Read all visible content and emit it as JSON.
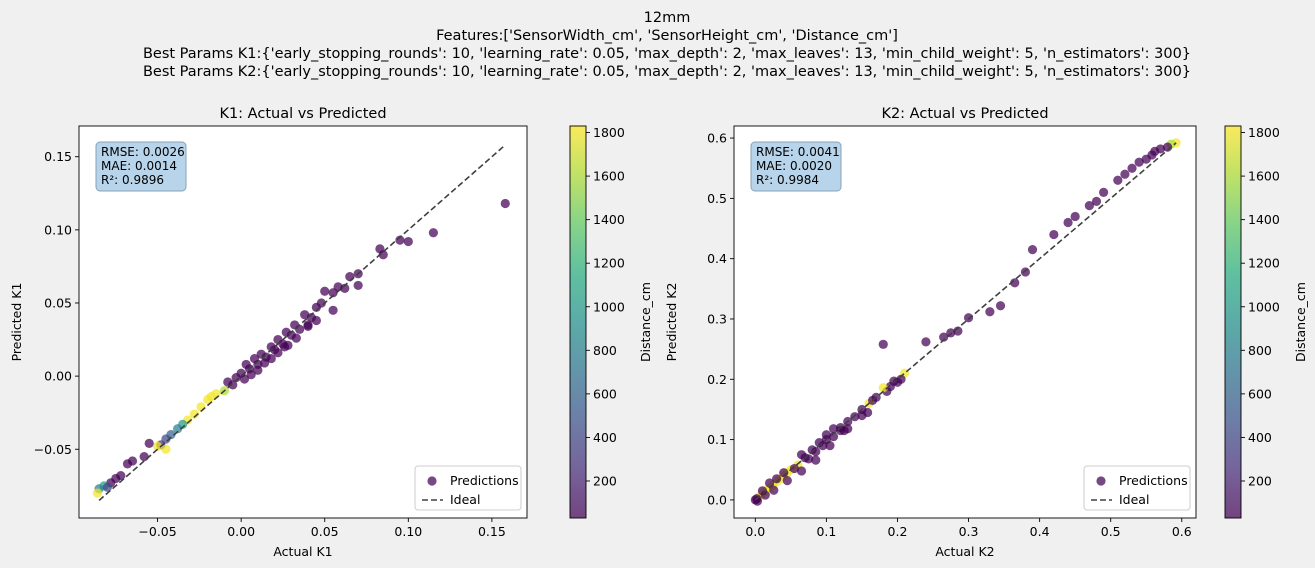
{
  "figure": {
    "title_lines": [
      "12mm",
      "Features:['SensorWidth_cm', 'SensorHeight_cm', 'Distance_cm']",
      "Best Params K1:{'early_stopping_rounds': 10, 'learning_rate': 0.05, 'max_depth': 2, 'max_leaves': 13, 'min_child_weight': 5, 'n_estimators': 300}",
      "Best Params K2:{'early_stopping_rounds': 10, 'learning_rate': 0.05, 'max_depth': 2, 'max_leaves': 13, 'min_child_weight': 5, 'n_estimators': 300}"
    ],
    "background": "#f0f0f0"
  },
  "chart_data": [
    {
      "type": "scatter",
      "title": "K1: Actual vs Predicted",
      "xlabel": "Actual K1",
      "ylabel": "Predicted K1",
      "xlim": [
        -0.097,
        0.171
      ],
      "ylim": [
        -0.097,
        0.171
      ],
      "xticks": [
        -0.05,
        0.0,
        0.05,
        0.1,
        0.15
      ],
      "xtick_labels": [
        "−0.05",
        "0.00",
        "0.05",
        "0.10",
        "0.15"
      ],
      "yticks": [
        -0.05,
        0.0,
        0.05,
        0.1,
        0.15
      ],
      "ytick_labels": [
        "−0.05",
        "0.00",
        "0.05",
        "0.10",
        "0.15"
      ],
      "metrics": [
        "RMSE: 0.0026",
        "MAE: 0.0014",
        "R²: 0.9896"
      ],
      "ideal_line": [
        [
          -0.085,
          -0.085
        ],
        [
          0.158,
          0.158
        ]
      ],
      "series": [
        {
          "name": "Predictions",
          "color_by": "Distance_cm",
          "points": [
            [
              0.158,
              0.118,
              30
            ],
            [
              0.115,
              0.098,
              30
            ],
            [
              0.1,
              0.092,
              30
            ],
            [
              0.095,
              0.093,
              30
            ],
            [
              0.085,
              0.083,
              30
            ],
            [
              0.083,
              0.087,
              30
            ],
            [
              0.07,
              0.07,
              30
            ],
            [
              0.065,
              0.068,
              30
            ],
            [
              0.07,
              0.062,
              30
            ],
            [
              0.058,
              0.061,
              30
            ],
            [
              0.062,
              0.06,
              30
            ],
            [
              0.055,
              0.057,
              30
            ],
            [
              0.05,
              0.058,
              30
            ],
            [
              0.048,
              0.05,
              30
            ],
            [
              0.055,
              0.045,
              30
            ],
            [
              0.045,
              0.047,
              30
            ],
            [
              0.042,
              0.04,
              30
            ],
            [
              0.038,
              0.042,
              30
            ],
            [
              0.04,
              0.035,
              30
            ],
            [
              0.035,
              0.032,
              30
            ],
            [
              0.032,
              0.035,
              30
            ],
            [
              0.03,
              0.028,
              30
            ],
            [
              0.027,
              0.03,
              30
            ],
            [
              0.025,
              0.022,
              30
            ],
            [
              0.022,
              0.025,
              30
            ],
            [
              0.02,
              0.018,
              30
            ],
            [
              0.018,
              0.02,
              30
            ],
            [
              0.015,
              0.013,
              30
            ],
            [
              0.012,
              0.015,
              30
            ],
            [
              0.01,
              0.008,
              30
            ],
            [
              0.008,
              0.012,
              30
            ],
            [
              0.005,
              0.005,
              30
            ],
            [
              0.003,
              0.008,
              30
            ],
            [
              0.0,
              0.002,
              30
            ],
            [
              0.002,
              -0.002,
              30
            ],
            [
              -0.003,
              -0.001,
              30
            ],
            [
              -0.005,
              -0.006,
              30
            ],
            [
              -0.008,
              -0.004,
              30
            ],
            [
              0.018,
              0.012,
              30
            ],
            [
              0.026,
              0.02,
              30
            ],
            [
              0.033,
              0.026,
              30
            ],
            [
              0.04,
              0.034,
              30
            ],
            [
              0.045,
              0.038,
              30
            ],
            [
              0.028,
              0.021,
              30
            ],
            [
              0.014,
              0.009,
              30
            ],
            [
              0.006,
              0.001,
              30
            ],
            [
              0.01,
              0.004,
              30
            ],
            [
              0.022,
              0.016,
              30
            ],
            [
              -0.015,
              -0.012,
              1800
            ],
            [
              -0.02,
              -0.016,
              1800
            ],
            [
              -0.024,
              -0.021,
              1800
            ],
            [
              -0.028,
              -0.026,
              1800
            ],
            [
              -0.032,
              -0.03,
              1800
            ],
            [
              -0.018,
              -0.014,
              1800
            ],
            [
              -0.01,
              -0.01,
              1600
            ],
            [
              -0.035,
              -0.033,
              1000
            ],
            [
              -0.038,
              -0.036,
              800
            ],
            [
              -0.042,
              -0.04,
              600
            ],
            [
              -0.045,
              -0.043,
              400
            ],
            [
              -0.048,
              -0.047,
              300
            ],
            [
              -0.045,
              -0.05,
              1800
            ],
            [
              -0.05,
              -0.048,
              1800
            ],
            [
              -0.055,
              -0.046,
              30
            ],
            [
              -0.058,
              -0.055,
              30
            ],
            [
              -0.065,
              -0.058,
              30
            ],
            [
              -0.068,
              -0.06,
              30
            ],
            [
              -0.072,
              -0.068,
              30
            ],
            [
              -0.075,
              -0.07,
              30
            ],
            [
              -0.078,
              -0.073,
              30
            ],
            [
              -0.082,
              -0.075,
              1000
            ],
            [
              -0.085,
              -0.077,
              800
            ],
            [
              -0.086,
              -0.08,
              1800
            ],
            [
              -0.08,
              -0.076,
              400
            ]
          ]
        },
        {
          "name": "Ideal"
        }
      ],
      "legend": {
        "placement": "lower-right",
        "entries": [
          "Predictions",
          "Ideal"
        ]
      },
      "colorbar": {
        "label": "Distance_cm",
        "range": [
          30,
          1830
        ],
        "ticks": [
          200,
          400,
          600,
          800,
          1000,
          1200,
          1400,
          1600,
          1800
        ],
        "tick_labels": [
          "200",
          "400",
          "600",
          "800",
          "1000",
          "1200",
          "1400",
          "1600",
          "1800"
        ]
      }
    },
    {
      "type": "scatter",
      "title": "K2: Actual vs Predicted",
      "xlabel": "Actual K2",
      "ylabel": "Predicted K2",
      "xlim": [
        -0.03,
        0.62
      ],
      "ylim": [
        -0.03,
        0.62
      ],
      "xticks": [
        0.0,
        0.1,
        0.2,
        0.3,
        0.4,
        0.5,
        0.6
      ],
      "xtick_labels": [
        "0.0",
        "0.1",
        "0.2",
        "0.3",
        "0.4",
        "0.5",
        "0.6"
      ],
      "yticks": [
        0.0,
        0.1,
        0.2,
        0.3,
        0.4,
        0.5,
        0.6
      ],
      "ytick_labels": [
        "0.0",
        "0.1",
        "0.2",
        "0.3",
        "0.4",
        "0.5",
        "0.6"
      ],
      "metrics": [
        "RMSE: 0.0041",
        "MAE: 0.0020",
        "R²: 0.9984"
      ],
      "ideal_line": [
        [
          0.0,
          0.0
        ],
        [
          0.592,
          0.592
        ]
      ],
      "series": [
        {
          "name": "Predictions",
          "color_by": "Distance_cm",
          "points": [
            [
              0.592,
              0.592,
              1800
            ],
            [
              0.585,
              0.59,
              1600
            ],
            [
              0.58,
              0.585,
              30
            ],
            [
              0.57,
              0.582,
              30
            ],
            [
              0.562,
              0.578,
              30
            ],
            [
              0.558,
              0.572,
              30
            ],
            [
              0.55,
              0.565,
              30
            ],
            [
              0.54,
              0.56,
              30
            ],
            [
              0.53,
              0.55,
              30
            ],
            [
              0.52,
              0.54,
              30
            ],
            [
              0.51,
              0.53,
              30
            ],
            [
              0.49,
              0.51,
              30
            ],
            [
              0.48,
              0.495,
              30
            ],
            [
              0.47,
              0.488,
              30
            ],
            [
              0.45,
              0.47,
              30
            ],
            [
              0.44,
              0.46,
              30
            ],
            [
              0.42,
              0.44,
              30
            ],
            [
              0.39,
              0.415,
              30
            ],
            [
              0.38,
              0.378,
              30
            ],
            [
              0.365,
              0.36,
              30
            ],
            [
              0.345,
              0.322,
              30
            ],
            [
              0.33,
              0.312,
              30
            ],
            [
              0.3,
              0.302,
              30
            ],
            [
              0.285,
              0.28,
              30
            ],
            [
              0.275,
              0.277,
              30
            ],
            [
              0.265,
              0.27,
              30
            ],
            [
              0.24,
              0.262,
              30
            ],
            [
              0.18,
              0.258,
              30
            ],
            [
              0.21,
              0.21,
              1800
            ],
            [
              0.205,
              0.2,
              30
            ],
            [
              0.2,
              0.195,
              30
            ],
            [
              0.19,
              0.188,
              30
            ],
            [
              0.185,
              0.18,
              30
            ],
            [
              0.18,
              0.186,
              1800
            ],
            [
              0.17,
              0.17,
              30
            ],
            [
              0.16,
              0.16,
              1800
            ],
            [
              0.158,
              0.145,
              30
            ],
            [
              0.15,
              0.15,
              30
            ],
            [
              0.14,
              0.138,
              30
            ],
            [
              0.13,
              0.13,
              30
            ],
            [
              0.125,
              0.115,
              30
            ],
            [
              0.12,
              0.12,
              30
            ],
            [
              0.11,
              0.105,
              30
            ],
            [
              0.1,
              0.1,
              30
            ],
            [
              0.095,
              0.09,
              30
            ],
            [
              0.09,
              0.095,
              30
            ],
            [
              0.085,
              0.08,
              30
            ],
            [
              0.08,
              0.083,
              30
            ],
            [
              0.07,
              0.07,
              30
            ],
            [
              0.065,
              0.075,
              30
            ],
            [
              0.06,
              0.058,
              1800
            ],
            [
              0.05,
              0.05,
              1800
            ],
            [
              0.045,
              0.045,
              1800
            ],
            [
              0.04,
              0.04,
              1800
            ],
            [
              0.035,
              0.035,
              1800
            ],
            [
              0.03,
              0.03,
              1800
            ],
            [
              0.025,
              0.025,
              1800
            ],
            [
              0.02,
              0.02,
              1800
            ],
            [
              0.015,
              0.015,
              1800
            ],
            [
              0.01,
              0.01,
              1800
            ],
            [
              0.005,
              0.005,
              1800
            ],
            [
              0.002,
              0.002,
              30
            ],
            [
              0.0,
              0.0,
              30
            ],
            [
              0.003,
              -0.002,
              30
            ],
            [
              0.01,
              0.015,
              30
            ],
            [
              0.02,
              0.028,
              30
            ],
            [
              0.03,
              0.035,
              30
            ],
            [
              0.04,
              0.045,
              30
            ],
            [
              0.055,
              0.052,
              30
            ],
            [
              0.075,
              0.068,
              30
            ],
            [
              0.12,
              0.115,
              30
            ],
            [
              0.165,
              0.165,
              30
            ],
            [
              0.195,
              0.197,
              30
            ],
            [
              0.014,
              0.008,
              30
            ],
            [
              0.026,
              0.016,
              30
            ],
            [
              0.045,
              0.032,
              30
            ],
            [
              0.065,
              0.048,
              30
            ],
            [
              0.085,
              0.066,
              30
            ],
            [
              0.105,
              0.09,
              30
            ],
            [
              0.13,
              0.118,
              30
            ],
            [
              0.15,
              0.14,
              30
            ],
            [
              0.1,
              0.108,
              30
            ],
            [
              0.11,
              0.118,
              30
            ]
          ]
        },
        {
          "name": "Ideal"
        }
      ],
      "legend": {
        "placement": "lower-right",
        "entries": [
          "Predictions",
          "Ideal"
        ]
      },
      "colorbar": {
        "label": "Distance_cm",
        "range": [
          30,
          1830
        ],
        "ticks": [
          200,
          400,
          600,
          800,
          1000,
          1200,
          1400,
          1600,
          1800
        ],
        "tick_labels": [
          "200",
          "400",
          "600",
          "800",
          "1000",
          "1200",
          "1400",
          "1600",
          "1800"
        ]
      }
    }
  ]
}
